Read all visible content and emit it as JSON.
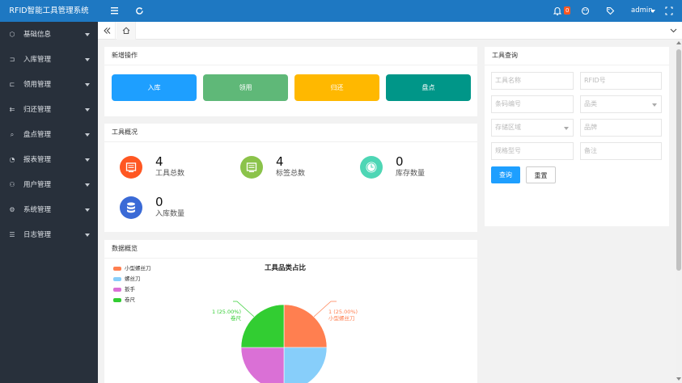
{
  "app": {
    "title": "RFID智能工具管理系统"
  },
  "topbar": {
    "notification_count": "0",
    "user": "admin"
  },
  "sidebar": {
    "items": [
      {
        "label": "基础信息",
        "icon": "cube-icon"
      },
      {
        "label": "入库管理",
        "icon": "inbox-in-icon"
      },
      {
        "label": "领用管理",
        "icon": "checkout-icon"
      },
      {
        "label": "归还管理",
        "icon": "return-icon"
      },
      {
        "label": "盘点管理",
        "icon": "search-icon"
      },
      {
        "label": "报表管理",
        "icon": "pie-chart-icon"
      },
      {
        "label": "用户管理",
        "icon": "user-icon"
      },
      {
        "label": "系统管理",
        "icon": "gear-icon"
      },
      {
        "label": "日志管理",
        "icon": "log-icon"
      }
    ]
  },
  "quick_ops": {
    "title": "新增操作",
    "buttons": [
      {
        "label": "入库",
        "color": "#1e9fff"
      },
      {
        "label": "领用",
        "color": "#5fb878"
      },
      {
        "label": "归还",
        "color": "#ffb800"
      },
      {
        "label": "盘点",
        "color": "#009688"
      }
    ]
  },
  "overview": {
    "title": "工具概况",
    "stats": [
      {
        "value": "4",
        "label": "工具总数",
        "color": "#ff5722"
      },
      {
        "value": "4",
        "label": "标签总数",
        "color": "#8bc34a"
      },
      {
        "value": "0",
        "label": "库存数量",
        "color": "#4ed6b5"
      },
      {
        "value": "0",
        "label": "入库数量",
        "color": "#3a6ad6"
      }
    ]
  },
  "query": {
    "title": "工具查询",
    "fields": {
      "tool_name": "工具名称",
      "rfid": "RFID号",
      "barcode": "条码编号",
      "category": "品类",
      "storage_area": "存储区域",
      "brand": "品牌",
      "spec_model": "规格型号",
      "remark": "备注"
    },
    "search_label": "查询",
    "reset_label": "重置"
  },
  "data_overview": {
    "title": "数据概览"
  },
  "chart_data": {
    "type": "pie",
    "title": "工具品类占比",
    "legend_position": "top-left",
    "slices": [
      {
        "name": "小型螺丝刀",
        "value": 1,
        "percent": "25.00%",
        "color": "#ff7f50"
      },
      {
        "name": "螺丝刀",
        "value": 1,
        "percent": "25.00%",
        "color": "#87cefa"
      },
      {
        "name": "扳手",
        "value": 1,
        "percent": "25.00%",
        "color": "#da70d6"
      },
      {
        "name": "卷尺",
        "value": 1,
        "percent": "25.00%",
        "color": "#32cd32"
      }
    ],
    "visible_labels": [
      {
        "value_text": "1 (25.00%)",
        "name": "小型螺丝刀"
      },
      {
        "value_text": "1 (25.00%)",
        "name": "卷尺"
      }
    ]
  }
}
